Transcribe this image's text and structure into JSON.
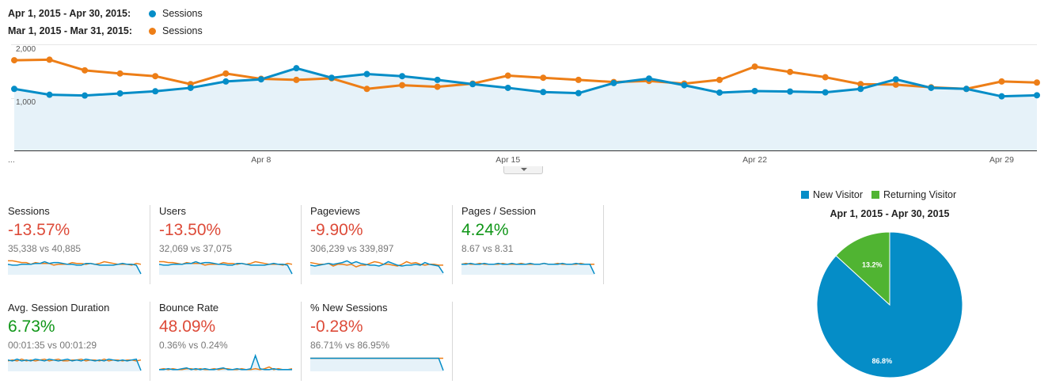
{
  "colors": {
    "current": "#058dc7",
    "previous": "#ed7e17",
    "returning": "#50b432",
    "area": "#e6f2f9",
    "negative": "#dd4b39",
    "positive": "#109618"
  },
  "legend": [
    {
      "range": "Apr 1, 2015 - Apr 30, 2015:",
      "series": "Sessions"
    },
    {
      "range": "Mar 1, 2015 - Mar 31, 2015:",
      "series": "Sessions"
    }
  ],
  "chart_data": [
    {
      "type": "line",
      "x": [
        "Apr 1",
        "Apr 2",
        "Apr 3",
        "Apr 4",
        "Apr 5",
        "Apr 6",
        "Apr 7",
        "Apr 8",
        "Apr 9",
        "Apr 10",
        "Apr 11",
        "Apr 12",
        "Apr 13",
        "Apr 14",
        "Apr 15",
        "Apr 16",
        "Apr 17",
        "Apr 18",
        "Apr 19",
        "Apr 20",
        "Apr 21",
        "Apr 22",
        "Apr 23",
        "Apr 24",
        "Apr 25",
        "Apr 26",
        "Apr 27",
        "Apr 28",
        "Apr 29",
        "Apr 30"
      ],
      "xticks": [
        "...",
        "Apr 8",
        "Apr 15",
        "Apr 22",
        "Apr 29"
      ],
      "yticks": [
        "2,000",
        "1,000"
      ],
      "ylim": [
        0,
        2000
      ],
      "series": [
        {
          "name": "Apr 1, 2015 - Apr 30, 2015: Sessions",
          "values": [
            1160,
            1050,
            1035,
            1075,
            1115,
            1180,
            1300,
            1340,
            1550,
            1370,
            1440,
            1400,
            1330,
            1250,
            1180,
            1100,
            1080,
            1270,
            1355,
            1230,
            1090,
            1120,
            1110,
            1095,
            1160,
            1340,
            1180,
            1160,
            1020,
            1040
          ]
        },
        {
          "name": "Mar 1, 2015 - Mar 31, 2015: Sessions",
          "values": [
            1700,
            1710,
            1510,
            1450,
            1400,
            1250,
            1450,
            1350,
            1330,
            1360,
            1160,
            1230,
            1200,
            1260,
            1410,
            1370,
            1330,
            1290,
            1310,
            1260,
            1330,
            1580,
            1480,
            1380,
            1250,
            1240,
            1190,
            1160,
            1300,
            1280
          ]
        }
      ]
    },
    {
      "type": "pie",
      "title": "Apr 1, 2015 - Apr 30, 2015",
      "categories": [
        "New Visitor",
        "Returning Visitor"
      ],
      "values": [
        86.8,
        13.2
      ],
      "labels": [
        "86.8%",
        "13.2%"
      ]
    }
  ],
  "scorecards": [
    {
      "label": "Sessions",
      "change": "-13.57%",
      "trend": "neg",
      "compare": "35,338 vs 40,885",
      "spark": {
        "current": [
          12,
          11,
          11,
          12,
          12,
          12,
          13,
          13,
          15,
          13,
          14,
          14,
          13,
          12,
          12,
          11,
          11,
          13,
          13,
          12,
          11,
          11,
          11,
          11,
          12,
          13,
          12,
          12,
          11,
          1
        ],
        "previous": [
          16,
          16,
          15,
          14,
          14,
          12,
          14,
          13,
          13,
          13,
          11,
          12,
          12,
          12,
          14,
          13,
          13,
          12,
          13,
          12,
          13,
          15,
          14,
          13,
          12,
          12,
          12,
          11,
          13,
          12
        ]
      }
    },
    {
      "label": "Users",
      "change": "-13.50%",
      "trend": "neg",
      "compare": "32,069 vs 37,075",
      "spark": {
        "current": [
          12,
          11,
          11,
          12,
          12,
          12,
          13,
          13,
          15,
          13,
          14,
          14,
          13,
          12,
          12,
          11,
          11,
          13,
          13,
          12,
          11,
          11,
          11,
          11,
          12,
          13,
          12,
          12,
          11,
          1
        ],
        "previous": [
          15,
          15,
          14,
          14,
          13,
          12,
          14,
          13,
          13,
          13,
          11,
          12,
          12,
          12,
          14,
          13,
          13,
          12,
          13,
          12,
          13,
          15,
          14,
          13,
          12,
          12,
          12,
          11,
          13,
          12
        ]
      }
    },
    {
      "label": "Pageviews",
      "change": "-9.90%",
      "trend": "neg",
      "compare": "306,239 vs 339,897",
      "spark": {
        "current": [
          11,
          10,
          11,
          12,
          13,
          12,
          13,
          14,
          16,
          13,
          15,
          13,
          12,
          11,
          11,
          10,
          12,
          15,
          13,
          11,
          10,
          11,
          11,
          12,
          11,
          14,
          12,
          11,
          10,
          2
        ],
        "previous": [
          14,
          13,
          12,
          12,
          13,
          10,
          12,
          12,
          11,
          12,
          9,
          11,
          11,
          13,
          15,
          14,
          12,
          12,
          11,
          10,
          12,
          15,
          13,
          14,
          12,
          11,
          12,
          12,
          11,
          11
        ]
      }
    },
    {
      "label": "Pages / Session",
      "change": "4.24%",
      "trend": "pos",
      "compare": "8.67 vs 8.31",
      "spark": {
        "current": [
          12,
          12,
          13,
          12,
          12,
          13,
          12,
          12,
          13,
          12,
          12,
          13,
          12,
          12,
          12,
          13,
          12,
          12,
          13,
          12,
          12,
          12,
          13,
          12,
          12,
          13,
          12,
          12,
          12,
          1
        ],
        "previous": [
          12,
          13,
          12,
          12,
          13,
          12,
          12,
          12,
          12,
          13,
          12,
          12,
          12,
          13,
          12,
          12,
          12,
          12,
          13,
          12,
          12,
          13,
          12,
          12,
          12,
          12,
          13,
          12,
          12,
          12
        ]
      }
    },
    {
      "label": "Avg. Session Duration",
      "change": "6.73%",
      "trend": "pos",
      "compare": "00:01:35 vs 00:01:29",
      "spark": {
        "current": [
          13,
          12,
          14,
          12,
          13,
          12,
          14,
          13,
          12,
          14,
          13,
          12,
          13,
          14,
          12,
          13,
          12,
          14,
          13,
          12,
          13,
          12,
          14,
          13,
          12,
          13,
          12,
          13,
          14,
          1
        ],
        "previous": [
          12,
          13,
          12,
          14,
          12,
          13,
          12,
          13,
          14,
          12,
          13,
          14,
          12,
          12,
          13,
          13,
          14,
          12,
          13,
          13,
          12,
          14,
          12,
          13,
          13,
          12,
          13,
          13,
          12,
          13
        ]
      }
    },
    {
      "label": "Bounce Rate",
      "change": "48.09%",
      "trend": "neg",
      "compare": "0.36% vs 0.24%",
      "spark": {
        "current": [
          2,
          2,
          3,
          2,
          2,
          3,
          4,
          2,
          3,
          2,
          3,
          2,
          2,
          3,
          4,
          2,
          2,
          3,
          2,
          2,
          3,
          18,
          3,
          2,
          2,
          3,
          2,
          2,
          2,
          2
        ],
        "previous": [
          2,
          3,
          2,
          3,
          2,
          2,
          3,
          3,
          2,
          3,
          2,
          2,
          3,
          2,
          3,
          3,
          2,
          2,
          3,
          2,
          2,
          3,
          2,
          3,
          5,
          2,
          3,
          2,
          2,
          3
        ]
      }
    },
    {
      "label": "% New Sessions",
      "change": "-0.28%",
      "trend": "neg",
      "compare": "86.71% vs 86.95%",
      "spark": {
        "current": [
          15,
          15,
          15,
          15,
          15,
          15,
          15,
          15,
          15,
          15,
          15,
          15,
          15,
          15,
          15,
          15,
          15,
          15,
          15,
          15,
          15,
          15,
          15,
          15,
          15,
          15,
          15,
          15,
          15,
          1
        ],
        "previous": [
          15,
          15,
          15,
          15,
          15,
          15,
          15,
          15,
          15,
          15,
          15,
          15,
          15,
          15,
          15,
          15,
          15,
          15,
          15,
          15,
          15,
          15,
          15,
          15,
          15,
          15,
          15,
          15,
          15,
          15
        ]
      }
    }
  ]
}
